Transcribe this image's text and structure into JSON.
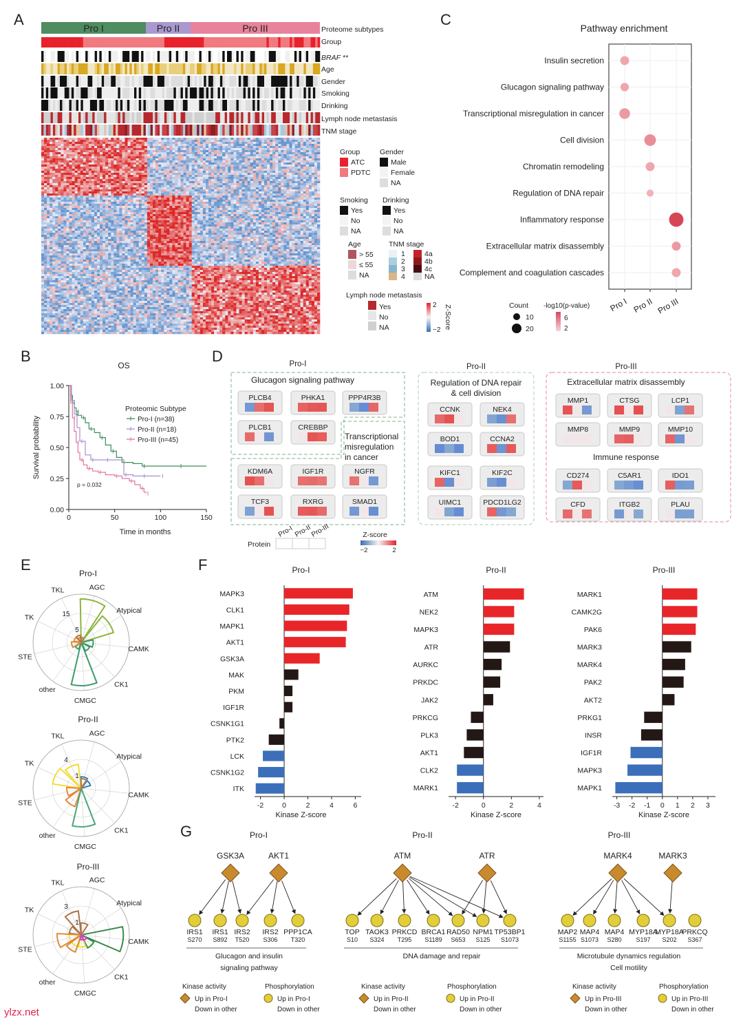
{
  "panel_letters": [
    "A",
    "B",
    "C",
    "D",
    "E",
    "F",
    "G"
  ],
  "watermark": "ylzx.net",
  "panelA": {
    "subtypes": [
      "Pro I",
      "Pro II",
      "Pro III"
    ],
    "subtype_colors": [
      "#4f8c5f",
      "#a999cf",
      "#e8839b"
    ],
    "track_labels": [
      "Proteome subtypes",
      "Group",
      "BRAF **",
      "Age",
      "Gender",
      "Smoking",
      "Drinking",
      "Lymph node metastasis",
      "TNM stage"
    ],
    "legend": {
      "group_title": "Group",
      "group_items": [
        "ATC",
        "PDTC"
      ],
      "gender_title": "Gender",
      "gender_items": [
        "Male",
        "Female",
        "NA"
      ],
      "smoking_title": "Smoking",
      "smoking_items": [
        "Yes",
        "No",
        "NA"
      ],
      "drinking_title": "Drinking",
      "drinking_items": [
        "Yes",
        "No",
        "NA"
      ],
      "age_title": "Age",
      "age_items": [
        "> 55",
        "≤ 55",
        "NA"
      ],
      "tnm_title": "TNM stage",
      "tnm_left": [
        "1",
        "2",
        "3",
        "4"
      ],
      "tnm_right": [
        "4a",
        "4b",
        "4c",
        "NA"
      ],
      "lnm_title": "Lymph node metastasis",
      "lnm_items": [
        "Yes",
        "No",
        "NA"
      ],
      "zscore_title": "Z-Score",
      "zscore_ticks": [
        "2",
        "−2"
      ]
    }
  },
  "panelB": {
    "title": "OS",
    "ylabel": "Survival probability",
    "xlabel": "Time in months",
    "legend_title": "Proteomic Subtype",
    "pvalue": "p = 0.032",
    "chart_data": {
      "type": "line",
      "title": "OS",
      "xlabel": "Time in months",
      "ylabel": "Survival probability",
      "xlim": [
        0,
        150
      ],
      "ylim": [
        0,
        1
      ],
      "xticks": [
        "0",
        "50",
        "100",
        "150"
      ],
      "yticks": [
        "0.00",
        "0.25",
        "0.50",
        "0.75",
        "1.00"
      ],
      "series": [
        {
          "name": "Pro-I (n=38)",
          "color": "#3e8e5a",
          "x": [
            0,
            2,
            4,
            6,
            8,
            10,
            14,
            18,
            22,
            28,
            34,
            40,
            46,
            52,
            58,
            70,
            80,
            100,
            120,
            150
          ],
          "y": [
            1.0,
            0.92,
            0.86,
            0.82,
            0.79,
            0.76,
            0.74,
            0.7,
            0.65,
            0.62,
            0.58,
            0.52,
            0.47,
            0.42,
            0.38,
            0.37,
            0.35,
            0.35,
            0.35,
            0.35
          ]
        },
        {
          "name": "Pro-II (n=18)",
          "color": "#a88fcf",
          "x": [
            0,
            3,
            6,
            9,
            12,
            18,
            24,
            30,
            40,
            50,
            60,
            70,
            80,
            90,
            100
          ],
          "y": [
            1.0,
            0.88,
            0.77,
            0.66,
            0.55,
            0.44,
            0.4,
            0.4,
            0.4,
            0.4,
            0.28,
            0.27,
            0.27,
            0.27,
            0.27
          ]
        },
        {
          "name": "Pro-III (n=45)",
          "color": "#e1779a",
          "x": [
            0,
            2,
            4,
            6,
            8,
            10,
            12,
            16,
            20,
            26,
            32,
            40,
            50,
            58,
            66,
            72,
            78,
            82,
            84
          ],
          "y": [
            1.0,
            0.86,
            0.74,
            0.63,
            0.54,
            0.46,
            0.4,
            0.36,
            0.33,
            0.31,
            0.3,
            0.28,
            0.27,
            0.25,
            0.23,
            0.2,
            0.17,
            0.14,
            0.13
          ]
        }
      ]
    }
  },
  "panelC": {
    "title": "Pathway enrichment",
    "count_label": "Count",
    "pval_label": "-log10(p-value)",
    "count_ticks": [
      "10",
      "20"
    ],
    "pval_ticks": [
      "6",
      "2"
    ],
    "chart_data": {
      "type": "scatter",
      "title": "Pathway enrichment",
      "x_categories": [
        "Pro I",
        "Pro II",
        "Pro III"
      ],
      "y_categories": [
        "Insulin secretion",
        "Glucagon signaling pathway",
        "Transcriptional misregulation in cancer",
        "Cell division",
        "Chromatin remodeling",
        "Regulation of DNA repair",
        "Inflammatory response",
        "Extracellular matrix disassembly",
        "Complement and coagulation cascades"
      ],
      "points": [
        {
          "x": "Pro I",
          "y": "Insulin secretion",
          "count": 12,
          "neglog10p": 3.0
        },
        {
          "x": "Pro I",
          "y": "Glucagon signaling pathway",
          "count": 11,
          "neglog10p": 3.0
        },
        {
          "x": "Pro I",
          "y": "Transcriptional misregulation in cancer",
          "count": 16,
          "neglog10p": 3.5
        },
        {
          "x": "Pro II",
          "y": "Cell division",
          "count": 18,
          "neglog10p": 4.0
        },
        {
          "x": "Pro II",
          "y": "Chromatin remodeling",
          "count": 12,
          "neglog10p": 3.0
        },
        {
          "x": "Pro II",
          "y": "Regulation of DNA repair",
          "count": 8,
          "neglog10p": 2.5
        },
        {
          "x": "Pro III",
          "y": "Inflammatory response",
          "count": 24,
          "neglog10p": 7.0
        },
        {
          "x": "Pro III",
          "y": "Extracellular matrix disassembly",
          "count": 12,
          "neglog10p": 3.5
        },
        {
          "x": "Pro III",
          "y": "Complement and coagulation cascades",
          "count": 12,
          "neglog10p": 3.0
        }
      ]
    }
  },
  "panelD": {
    "groups": [
      {
        "title": "Pro-I",
        "color": "#7fb68f",
        "boxes": [
          {
            "title": "Glucagon signaling pathway",
            "genes": [
              "PLCB4",
              "PHKA1",
              "PPP4R3B",
              "PLCB1",
              "CREBBP"
            ]
          },
          {
            "title": "Transcriptional misregulation in cancer",
            "title_lines": [
              "Transcriptional",
              "misregulation",
              "in cancer"
            ],
            "genes": [
              "KDM6A",
              "IGF1R",
              "NGFR",
              "TCF3",
              "RXRG",
              "SMAD1"
            ]
          }
        ]
      },
      {
        "title": "Pro-II",
        "color": "#a8cfb3",
        "boxes": [
          {
            "title": "Regulation of DNA repair & cell division",
            "title_lines": [
              "Regulation of DNA repair",
              "& cell division"
            ],
            "genes": [
              "CCNK",
              "NEK4",
              "BOD1",
              "CCNA2",
              "KIFC1",
              "KIF2C",
              "UIMC1",
              "PDCD1LG2"
            ]
          }
        ]
      },
      {
        "title": "Pro-III",
        "color": "#e58a9e",
        "boxes": [
          {
            "title": "Extracellular matrix disassembly",
            "genes": [
              "MMP1",
              "CTSG",
              "LCP1",
              "MMP8",
              "MMP9",
              "MMP10"
            ]
          },
          {
            "title": "Immune response",
            "genes": [
              "CD274",
              "C5AR1",
              "IDO1",
              "CFD",
              "ITGB2",
              "PLAU"
            ]
          }
        ]
      }
    ],
    "protein_label": "Protein",
    "protein_cols": [
      "Pro-I",
      "Pro-II",
      "Pro-III"
    ],
    "z_title": "Z-score",
    "z_ticks": [
      "−2",
      "2"
    ]
  },
  "panelE": {
    "axes_labels": [
      "TKL",
      "AGC",
      "Atypical",
      "CAMK",
      "CK1",
      "CMGC",
      "other",
      "STE",
      "TK"
    ],
    "chart_data": [
      {
        "type": "radar",
        "title": "Pro-I",
        "ring_labels": [
          "5",
          "15"
        ],
        "max": 20,
        "series": [
          {
            "name": "s1",
            "color": "#8bb53f",
            "values": [
              0,
              18,
              14,
              0,
              0,
              0,
              0,
              0,
              0
            ]
          },
          {
            "name": "s2",
            "color": "#3e9a6a",
            "values": [
              0,
              0,
              0,
              5,
              4,
              18,
              3,
              0,
              0
            ]
          },
          {
            "name": "s3",
            "color": "#e08a3a",
            "values": [
              2,
              0,
              0,
              0,
              0,
              0,
              0,
              4,
              3
            ]
          },
          {
            "name": "s4",
            "color": "#b07a45",
            "values": [
              3,
              2,
              0,
              0,
              0,
              0,
              0,
              0,
              0
            ]
          }
        ]
      },
      {
        "type": "radar",
        "title": "Pro-II",
        "ring_labels": [
          "1",
          "4"
        ],
        "max": 5,
        "series": [
          {
            "name": "s1",
            "color": "#f2dc3a",
            "values": [
              2.5,
              0,
              0,
              0,
              0,
              0,
              0,
              0,
              3
            ]
          },
          {
            "name": "s2",
            "color": "#2f7fb8",
            "values": [
              0,
              1.2,
              1.0,
              0,
              0,
              0,
              0,
              0,
              0
            ]
          },
          {
            "name": "s3",
            "color": "#e08a3a",
            "values": [
              0,
              0,
              0,
              0,
              0,
              0,
              2,
              1.5,
              0
            ]
          },
          {
            "name": "s4",
            "color": "#49a67a",
            "values": [
              0,
              0,
              0,
              0,
              0,
              4,
              0,
              0,
              0
            ]
          },
          {
            "name": "s5",
            "color": "#b07a45",
            "values": [
              0,
              1,
              0,
              0,
              0,
              0,
              0,
              0,
              0
            ]
          }
        ]
      },
      {
        "type": "radar",
        "title": "Pro-III",
        "ring_labels": [
          "1",
          "3"
        ],
        "max": 4,
        "series": [
          {
            "name": "s1",
            "color": "#3a8a4a",
            "values": [
              0,
              0,
              0,
              3.5,
              1.2,
              0,
              0,
              0,
              0
            ]
          },
          {
            "name": "s2",
            "color": "#a9744a",
            "values": [
              2,
              1,
              0,
              0,
              0,
              0,
              0,
              0,
              1
            ]
          },
          {
            "name": "s3",
            "color": "#f2dc3a",
            "values": [
              0,
              0,
              0,
              0,
              0,
              1,
              1,
              1,
              0
            ]
          },
          {
            "name": "s4",
            "color": "#e08a3a",
            "values": [
              0,
              0,
              0,
              0,
              0,
              0,
              1.5,
              2,
              0
            ]
          },
          {
            "name": "s5",
            "color": "#c44ab4",
            "values": [
              0,
              0,
              0,
              0,
              0.5,
              0.4,
              0,
              0,
              0
            ]
          }
        ]
      }
    ]
  },
  "panelF": {
    "xlabel": "Kinase Z-score",
    "chart_data": [
      {
        "type": "bar",
        "title": "Pro-I",
        "orientation": "horizontal",
        "xlim": [
          -2.5,
          6.5
        ],
        "xticks": [
          -2,
          0,
          2,
          4,
          6
        ],
        "categories": [
          "MAPK3",
          "CLK1",
          "MAPK1",
          "AKT1",
          "GSK3A",
          "MAK",
          "PKM",
          "IGF1R",
          "CSNK1G1",
          "PTK2",
          "LCK",
          "CSNK1G2",
          "ITK"
        ],
        "values": [
          5.8,
          5.5,
          5.3,
          5.2,
          3.0,
          1.2,
          0.7,
          0.7,
          -0.4,
          -1.3,
          -1.8,
          -2.2,
          -2.4
        ]
      },
      {
        "type": "bar",
        "title": "Pro-II",
        "orientation": "horizontal",
        "xlim": [
          -2.5,
          4.3
        ],
        "xticks": [
          -2,
          0,
          2,
          4
        ],
        "categories": [
          "ATM",
          "NEK2",
          "MAPK3",
          "ATR",
          "AURKC",
          "PRKDC",
          "JAK2",
          "PRKCG",
          "PLK3",
          "AKT1",
          "CLK2",
          "MARK1"
        ],
        "values": [
          2.9,
          2.2,
          2.2,
          1.9,
          1.3,
          1.2,
          0.7,
          -0.9,
          -1.2,
          -1.4,
          -1.9,
          -1.9
        ]
      },
      {
        "type": "bar",
        "title": "Pro-III",
        "orientation": "horizontal",
        "xlim": [
          -3.3,
          3.5
        ],
        "xticks": [
          -3,
          -2,
          -1,
          0,
          1,
          2,
          3
        ],
        "categories": [
          "MARK1",
          "CAMK2G",
          "PAK6",
          "MARK3",
          "MARK4",
          "PAK2",
          "AKT2",
          "PRKG1",
          "INSR",
          "IGF1R",
          "MAPK3",
          "MAPK1"
        ],
        "values": [
          2.3,
          2.3,
          2.2,
          1.9,
          1.5,
          1.4,
          0.8,
          -1.2,
          -1.4,
          -2.1,
          -2.3,
          -3.1
        ]
      }
    ]
  },
  "panelG": {
    "networks": [
      {
        "title": "Pro-I",
        "kinases": [
          "GSK3A",
          "AKT1"
        ],
        "substrates": [
          {
            "name": "IRS1",
            "site": "S270"
          },
          {
            "name": "IRS1",
            "site": "S892"
          },
          {
            "name": "IRS2",
            "site": "T520"
          },
          {
            "name": "IRS2",
            "site": "S306"
          },
          {
            "name": "PPP1CA",
            "site": "T320"
          }
        ],
        "edges": [
          [
            0,
            0
          ],
          [
            0,
            1
          ],
          [
            0,
            2
          ],
          [
            1,
            2
          ],
          [
            1,
            3
          ],
          [
            1,
            4
          ]
        ],
        "caption_lines": [
          "Glucagon and insulin",
          "signaling pathway"
        ]
      },
      {
        "title": "Pro-II",
        "kinases": [
          "ATM",
          "ATR"
        ],
        "substrates": [
          {
            "name": "TOP",
            "site": "S10"
          },
          {
            "name": "TAOK3",
            "site": "S324"
          },
          {
            "name": "PRKCD",
            "site": "T295"
          },
          {
            "name": "BRCA1",
            "site": "S1189"
          },
          {
            "name": "RAD50",
            "site": "S653"
          },
          {
            "name": "NPM1",
            "site": "S125"
          },
          {
            "name": "TP53BP1",
            "site": "S1073"
          }
        ],
        "edges": [
          [
            0,
            0
          ],
          [
            0,
            1
          ],
          [
            0,
            2
          ],
          [
            0,
            3
          ],
          [
            0,
            4
          ],
          [
            0,
            5
          ],
          [
            0,
            6
          ],
          [
            1,
            4
          ],
          [
            1,
            5
          ],
          [
            1,
            6
          ]
        ],
        "caption_lines": [
          "DNA damage and repair"
        ]
      },
      {
        "title": "Pro-III",
        "kinases": [
          "MARK4",
          "MARK3"
        ],
        "substrates": [
          {
            "name": "MAP2",
            "site": "S1155"
          },
          {
            "name": "MAP4",
            "site": "S1073"
          },
          {
            "name": "MAP4",
            "site": "S280"
          },
          {
            "name": "MYP18A",
            "site": "S197"
          },
          {
            "name": "MYP18A",
            "site": "S202"
          },
          {
            "name": "PRKCQ",
            "site": "S367"
          }
        ],
        "edges": [
          [
            0,
            0
          ],
          [
            0,
            1
          ],
          [
            0,
            2
          ],
          [
            0,
            3
          ],
          [
            0,
            4
          ],
          [
            1,
            4
          ]
        ],
        "caption_lines": [
          "Microtubule dynamics regulation",
          "Cell motility"
        ]
      }
    ],
    "legend": [
      {
        "kinase_title": "Kinase activity",
        "kinase_up": "Up in Pro-I",
        "kinase_down": "Down in other",
        "phos_title": "Phosphorylation",
        "phos_up": "Up in Pro-I",
        "phos_down": "Down in other"
      },
      {
        "kinase_title": "Kinase activity",
        "kinase_up": "Up in Pro-II",
        "kinase_down": "Down in other",
        "phos_title": "Phosphorylation",
        "phos_up": "Up in Pro-II",
        "phos_down": "Down in other"
      },
      {
        "kinase_title": "Kinase activity",
        "kinase_up": "Up in Pro-III",
        "kinase_down": "Down in other",
        "phos_title": "Phosphorylation",
        "phos_up": "Up in Pro-III",
        "phos_down": "Down in other"
      }
    ],
    "kinase_color": "#c98a2e",
    "substrate_color": "#e2cd3a"
  }
}
